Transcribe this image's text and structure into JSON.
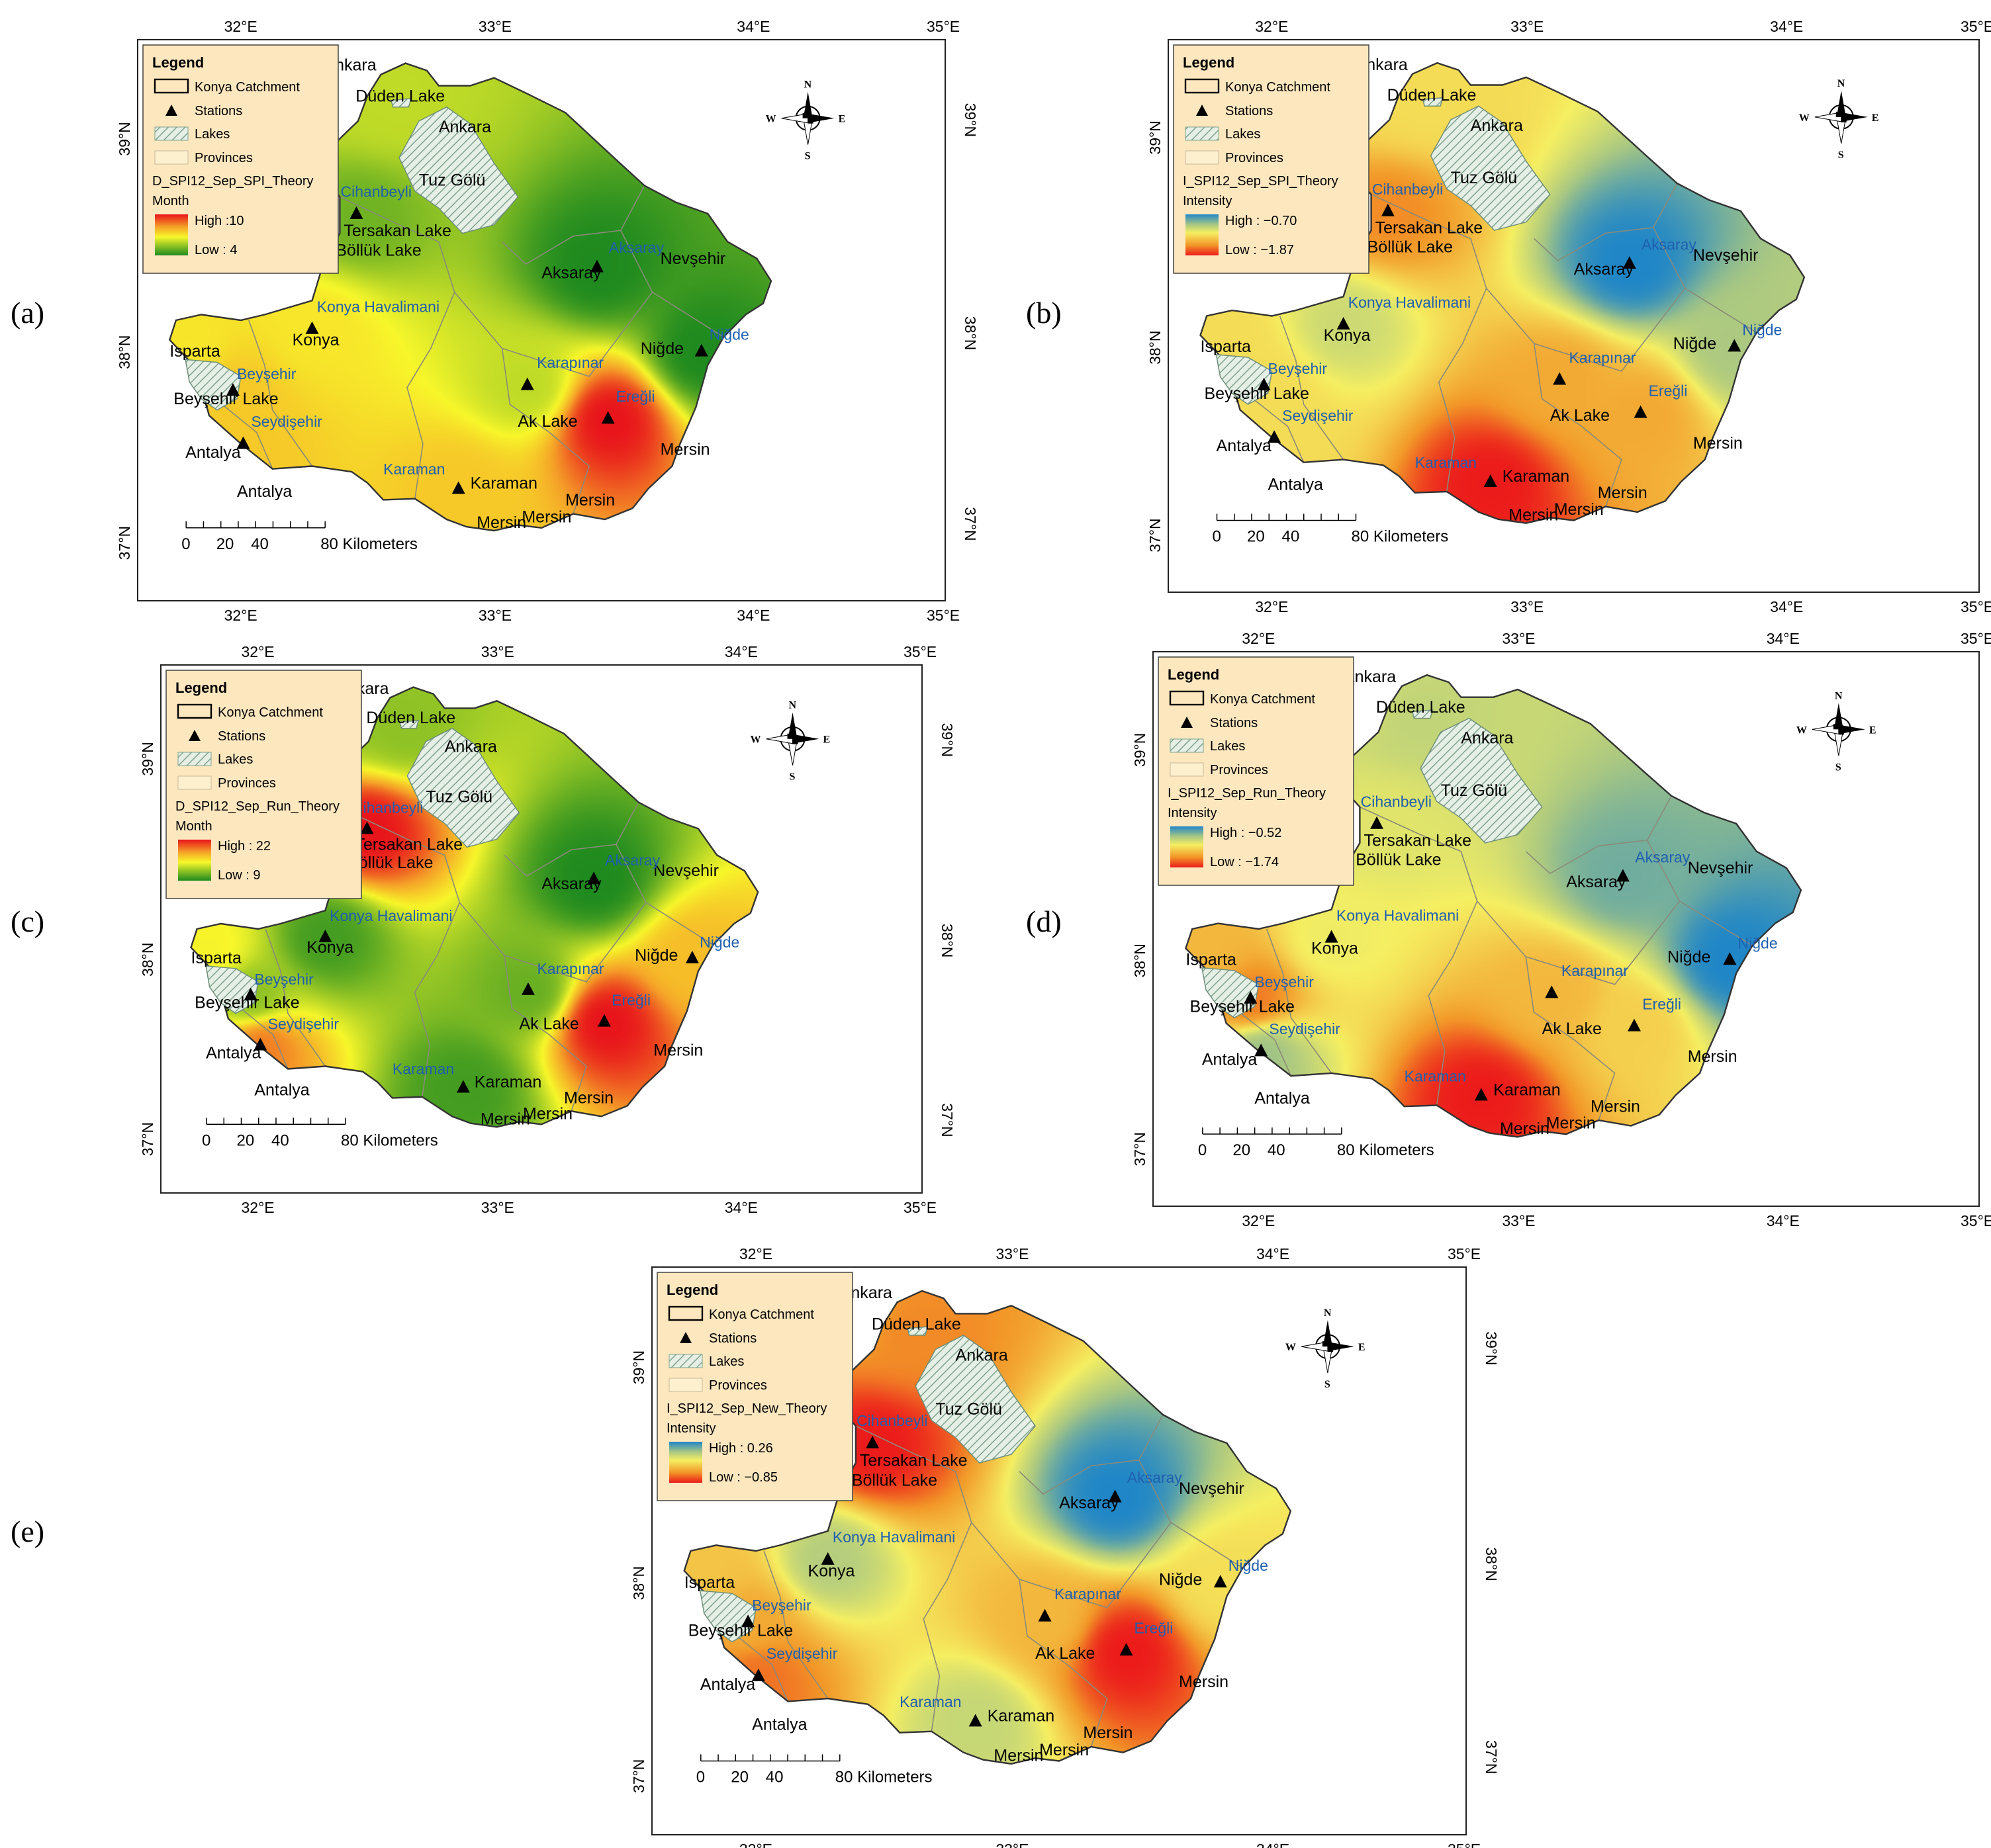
{
  "legend": {
    "title": "Legend",
    "catchment": "Konya Catchment",
    "stations": "Stations",
    "lakes": "Lakes",
    "provinces": "Provinces"
  },
  "scale_bar": {
    "ticks": [
      "0",
      "20",
      "40",
      "80 Kilometers"
    ]
  },
  "compass": {
    "n": "N",
    "s": "S",
    "e": "E",
    "w": "W"
  },
  "longitudes": [
    "32°E",
    "33°E",
    "34°E",
    "35°E"
  ],
  "latitudes": [
    "37°N",
    "38°N",
    "39°N"
  ],
  "colors": {
    "high_month": "#e8141b",
    "mid_month": "#f7f72a",
    "low_month": "#1f8a1f",
    "high_intensity": "#1f86c8",
    "mid_intensity": "#f5ef62",
    "low_intensity": "#ec1b1b",
    "lake_hatch": "#8fae9a",
    "legend_bg": "#fde7bf"
  },
  "provinces": [
    {
      "id": "ankara-n",
      "label": "Ankara"
    },
    {
      "id": "ankara-e",
      "label": "Ankara"
    },
    {
      "id": "aksaray",
      "label": "Aksaray"
    },
    {
      "id": "nevsehir",
      "label": "Nevşehir"
    },
    {
      "id": "nigde",
      "label": "Niğde"
    },
    {
      "id": "konya",
      "label": "Konya"
    },
    {
      "id": "isparta",
      "label": "Isparta"
    },
    {
      "id": "antalya-w",
      "label": "Antalya"
    },
    {
      "id": "antalya-s",
      "label": "Antalya"
    },
    {
      "id": "karaman",
      "label": "Karaman"
    },
    {
      "id": "mersin-e",
      "label": "Mersin"
    },
    {
      "id": "mersin-m",
      "label": "Mersin"
    },
    {
      "id": "mersin-s1",
      "label": "Mersin"
    },
    {
      "id": "mersin-s2",
      "label": "Mersin"
    }
  ],
  "lakes": [
    {
      "id": "duden",
      "label": "Düden Lake"
    },
    {
      "id": "tuz",
      "label": "Tuz Gölü"
    },
    {
      "id": "tersakan",
      "label": "Tersakan Lake"
    },
    {
      "id": "bolluk",
      "label": "Böllük Lake"
    },
    {
      "id": "beysehir-lake",
      "label": "Beyşehir Lake"
    },
    {
      "id": "ak",
      "label": "Ak Lake"
    }
  ],
  "stations": [
    {
      "id": "cihanbeyli",
      "label": "Cihanbeyli"
    },
    {
      "id": "aksaray",
      "label": "Aksaray"
    },
    {
      "id": "nigde",
      "label": "Niğde"
    },
    {
      "id": "konya-havalimani",
      "label": "Konya Havalimani"
    },
    {
      "id": "karapinar",
      "label": "Karapınar"
    },
    {
      "id": "eregli",
      "label": "Ereğli"
    },
    {
      "id": "beysehir",
      "label": "Beyşehir"
    },
    {
      "id": "seydisehir",
      "label": "Seydişehir"
    },
    {
      "id": "karaman",
      "label": "Karaman"
    }
  ],
  "panels": [
    {
      "id": "a",
      "label": "(a)",
      "layer": "D_SPI12_Sep_SPI_Theory",
      "variable": "Month",
      "high_label": "High :10",
      "low_label": "Low : 4",
      "kind": "month",
      "surface": {
        "cihanbeyli": 5,
        "aksaray": 4,
        "nigde": 4,
        "konya-havalimani": 7,
        "karapinar": 6,
        "eregli": 10,
        "beysehir": 7.5,
        "seydisehir": 7.5,
        "karaman": 7.5,
        "duden": 6,
        "ankara-n": 6,
        "isparta": 7
      }
    },
    {
      "id": "b",
      "label": "(b)",
      "layer": "I_SPI12_Sep_SPI_Theory",
      "variable": "Intensity",
      "high_label": "High : −0.70",
      "low_label": "Low : −1.87",
      "kind": "intensity",
      "surface": {
        "cihanbeyli": -1.6,
        "aksaray": -0.7,
        "nigde": -1.0,
        "konya-havalimani": -1.1,
        "karapinar": -1.5,
        "eregli": -1.5,
        "beysehir": -1.3,
        "seydisehir": -1.3,
        "karaman": -1.87,
        "duden": -1.3,
        "ankara-n": -1.3,
        "isparta": -1.3
      }
    },
    {
      "id": "c",
      "label": "(c)",
      "layer": "D_SPI12_Sep_Run_Theory",
      "variable": "Month",
      "high_label": "High : 22",
      "low_label": "Low : 9",
      "kind": "month",
      "surface": {
        "cihanbeyli": 22,
        "aksaray": 9,
        "nigde": 17,
        "konya-havalimani": 10,
        "karapinar": 11,
        "eregli": 22,
        "beysehir": 12,
        "seydisehir": 19,
        "karaman": 10,
        "duden": 12,
        "ankara-n": 12,
        "isparta": 15
      }
    },
    {
      "id": "d",
      "label": "(d)",
      "layer": "I_SPI12_Sep_Run_Theory",
      "variable": "Intensity",
      "high_label": "High : −0.52",
      "low_label": "Low : −1.74",
      "kind": "intensity",
      "surface": {
        "cihanbeyli": -1.0,
        "aksaray": -0.7,
        "nigde": -0.52,
        "konya-havalimani": -1.05,
        "karapinar": -1.3,
        "eregli": -1.2,
        "beysehir": -1.5,
        "seydisehir": -0.8,
        "karaman": -1.74,
        "duden": -0.9,
        "ankara-n": -0.95,
        "isparta": -1.3
      }
    },
    {
      "id": "e",
      "label": "(e)",
      "layer": "I_SPI12_Sep_New_Theory",
      "variable": "Intensity",
      "high_label": "High : 0.26",
      "low_label": "Low : −0.85",
      "kind": "intensity",
      "surface": {
        "cihanbeyli": -0.85,
        "aksaray": 0.26,
        "nigde": -0.3,
        "konya-havalimani": -0.05,
        "karapinar": -0.45,
        "eregli": -0.85,
        "beysehir": -0.5,
        "seydisehir": -0.65,
        "karaman": -0.1,
        "duden": -0.6,
        "ankara-n": -0.55,
        "isparta": -0.4
      }
    }
  ]
}
